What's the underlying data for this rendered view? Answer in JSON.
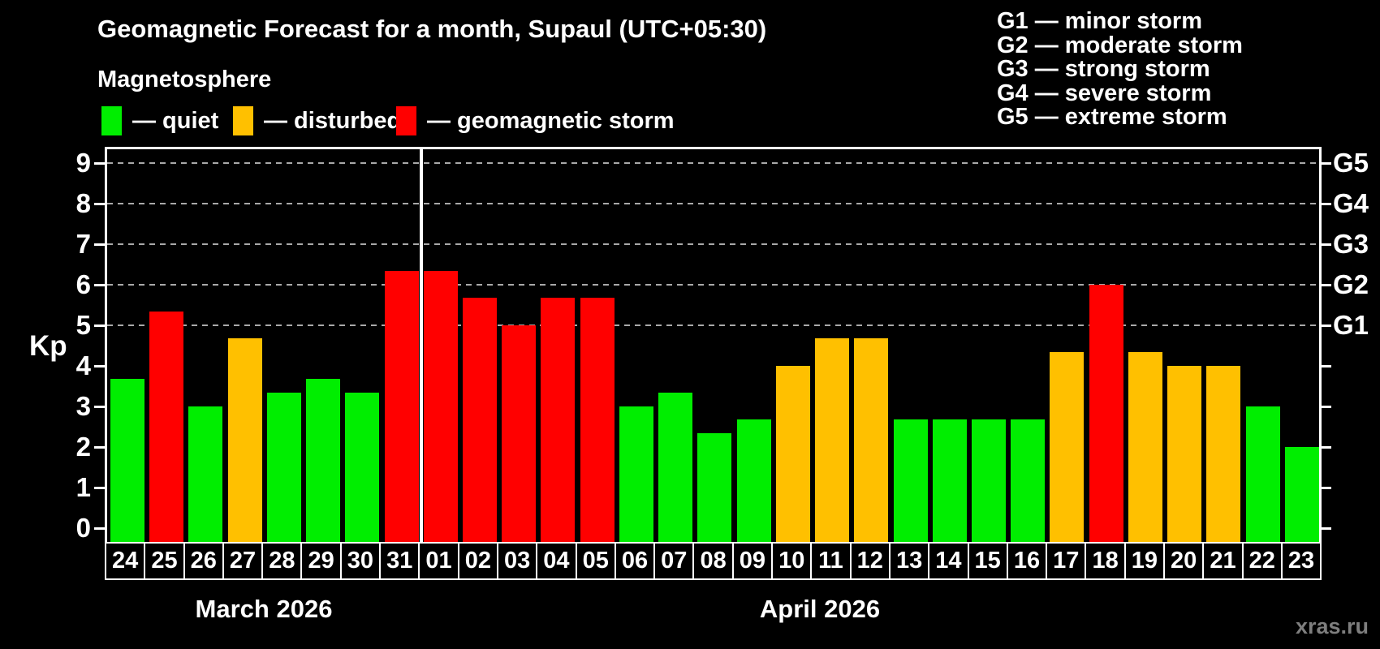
{
  "header": {
    "title": "Geomagnetic Forecast for a month, Supaul (UTC+05:30)",
    "subtitle": "Magnetosphere"
  },
  "legend": {
    "items": [
      {
        "name": "quiet",
        "label": "— quiet",
        "color": "#00EE00"
      },
      {
        "name": "disturbed",
        "label": "— disturbed",
        "color": "#FFC000"
      },
      {
        "name": "storm",
        "label": "— geomagnetic storm",
        "color": "#FF0000"
      }
    ]
  },
  "storm_scale_legend": {
    "items": [
      "G1 — minor storm",
      "G2 — moderate storm",
      "G3 — strong storm",
      "G4 — severe storm",
      "G5 — extreme storm"
    ]
  },
  "watermark": "xras.ru",
  "chart_data": {
    "type": "bar",
    "title": "Geomagnetic Forecast for a month, Supaul (UTC+05:30)",
    "ylabel": "Kp",
    "ylim": [
      0,
      9
    ],
    "y_ticks": [
      0,
      1,
      2,
      3,
      4,
      5,
      6,
      7,
      8,
      9
    ],
    "gridlines_at": [
      5,
      6,
      7,
      8,
      9
    ],
    "grid": "dashed-horizontal",
    "legend_position": "top",
    "right_axis_labels": [
      {
        "label": "G1",
        "kp": 5
      },
      {
        "label": "G2",
        "kp": 6
      },
      {
        "label": "G3",
        "kp": 7
      },
      {
        "label": "G4",
        "kp": 8
      },
      {
        "label": "G5",
        "kp": 9
      }
    ],
    "categories": [
      "24",
      "25",
      "26",
      "27",
      "28",
      "29",
      "30",
      "31",
      "01",
      "02",
      "03",
      "04",
      "05",
      "06",
      "07",
      "08",
      "09",
      "10",
      "11",
      "12",
      "13",
      "14",
      "15",
      "16",
      "17",
      "18",
      "19",
      "20",
      "21",
      "22",
      "23"
    ],
    "values": [
      3.67,
      5.33,
      3.0,
      4.67,
      3.33,
      3.67,
      3.33,
      6.33,
      6.33,
      5.67,
      5.0,
      5.67,
      5.67,
      3.0,
      3.33,
      2.33,
      2.67,
      4.0,
      4.67,
      4.67,
      2.67,
      2.67,
      2.67,
      2.67,
      4.33,
      6.0,
      4.33,
      4.0,
      4.0,
      3.0,
      2.0
    ],
    "status": [
      "quiet",
      "storm",
      "quiet",
      "disturbed",
      "quiet",
      "quiet",
      "quiet",
      "storm",
      "storm",
      "storm",
      "storm",
      "storm",
      "storm",
      "quiet",
      "quiet",
      "quiet",
      "quiet",
      "disturbed",
      "disturbed",
      "disturbed",
      "quiet",
      "quiet",
      "quiet",
      "quiet",
      "disturbed",
      "storm",
      "disturbed",
      "disturbed",
      "disturbed",
      "quiet",
      "quiet"
    ],
    "colors": {
      "quiet": "#00EE00",
      "disturbed": "#FFC000",
      "storm": "#FF0000"
    },
    "months": [
      {
        "label": "March 2026",
        "days": 8
      },
      {
        "label": "April 2026",
        "days": 23
      }
    ]
  }
}
